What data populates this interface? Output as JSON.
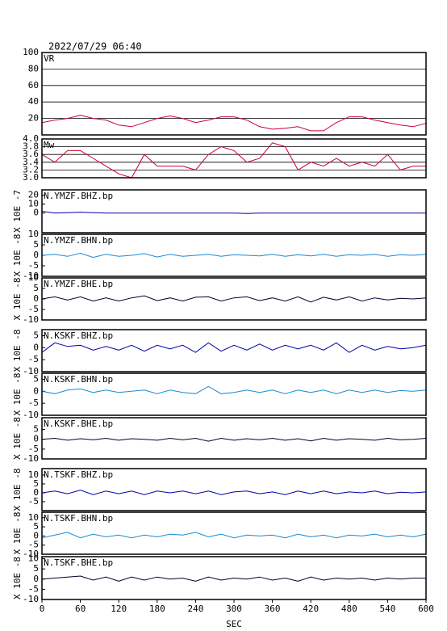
{
  "title": "2022/07/29 06:40",
  "chart_data": [
    {
      "type": "line",
      "title": "VR",
      "color": "#cc0033",
      "grid": true,
      "xlim": [
        0,
        600
      ],
      "ylim": [
        0,
        100
      ],
      "yticks": [
        20,
        40,
        60,
        80,
        100
      ],
      "x": [
        0,
        20,
        40,
        60,
        80,
        100,
        120,
        140,
        160,
        180,
        200,
        220,
        240,
        260,
        280,
        300,
        320,
        340,
        360,
        380,
        400,
        420,
        440,
        460,
        480,
        500,
        520,
        540,
        560,
        580,
        600
      ],
      "values": [
        15,
        18,
        20,
        24,
        20,
        18,
        12,
        10,
        15,
        20,
        23,
        20,
        15,
        18,
        22,
        22,
        18,
        10,
        7,
        8,
        10,
        5,
        5,
        15,
        22,
        22,
        18,
        15,
        12,
        10,
        14
      ]
    },
    {
      "type": "line",
      "title": "Mw",
      "color": "#cc0033",
      "grid": true,
      "xlim": [
        0,
        600
      ],
      "ylim": [
        3,
        4
      ],
      "yticks": [
        {
          "value": 3,
          "label": "3.0"
        },
        3.2,
        3.4,
        3.6,
        3.8,
        {
          "value": 4,
          "label": "4.0"
        }
      ],
      "x": [
        0,
        20,
        40,
        60,
        80,
        100,
        120,
        140,
        160,
        180,
        200,
        220,
        240,
        260,
        280,
        300,
        320,
        340,
        360,
        380,
        400,
        420,
        440,
        460,
        480,
        500,
        520,
        540,
        560,
        580,
        600
      ],
      "values": [
        3.6,
        3.4,
        3.7,
        3.7,
        3.5,
        3.3,
        3.1,
        3.0,
        3.6,
        3.3,
        3.3,
        3.3,
        3.2,
        3.6,
        3.8,
        3.7,
        3.4,
        3.5,
        3.9,
        3.8,
        3.2,
        3.4,
        3.3,
        3.5,
        3.3,
        3.4,
        3.3,
        3.6,
        3.2,
        3.3,
        3.3
      ]
    },
    {
      "type": "line",
      "title": "N.YMZF.BHZ.bp",
      "ylabel": "X 10E -7",
      "color": "#0000aa",
      "xlim": [
        0,
        600
      ],
      "ylim": [
        -22,
        26
      ],
      "yticks": [
        0,
        10,
        20
      ],
      "x": [
        0,
        20,
        40,
        60,
        80,
        100,
        120,
        140,
        160,
        180,
        200,
        220,
        240,
        260,
        280,
        300,
        320,
        340,
        360,
        380,
        400,
        420,
        440,
        460,
        480,
        500,
        520,
        540,
        560,
        580,
        600
      ],
      "values": [
        2,
        0,
        0.5,
        1,
        0.5,
        0,
        0,
        0,
        0,
        0,
        0,
        0,
        0,
        0,
        0,
        0,
        -0.5,
        0,
        0,
        0,
        0,
        0,
        0,
        0,
        0,
        0,
        0,
        0,
        0,
        0,
        0
      ]
    },
    {
      "type": "line",
      "title": "N.YMZF.BHN.bp",
      "ylabel": "X 10E -8",
      "color": "#1a8ad4",
      "xlim": [
        0,
        600
      ],
      "ylim": [
        -10,
        10
      ],
      "yticks": [
        -10,
        -5,
        0,
        5,
        10
      ],
      "x": [
        0,
        20,
        40,
        60,
        80,
        100,
        120,
        140,
        160,
        180,
        200,
        220,
        240,
        260,
        280,
        300,
        320,
        340,
        360,
        380,
        400,
        420,
        440,
        460,
        480,
        500,
        520,
        540,
        560,
        580,
        600
      ],
      "values": [
        0,
        0.5,
        -0.5,
        1,
        -1,
        0.5,
        -0.5,
        0,
        0.8,
        -0.8,
        0.5,
        -0.5,
        0,
        0.5,
        -0.5,
        0.3,
        0,
        -0.3,
        0.5,
        -0.5,
        0.3,
        -0.3,
        0.5,
        -0.5,
        0.3,
        0,
        0.5,
        -0.5,
        0.3,
        0,
        0.5
      ]
    },
    {
      "type": "line",
      "title": "N.YMZF.BHE.bp",
      "ylabel": "X 10E -8",
      "color": "#000033",
      "xlim": [
        0,
        600
      ],
      "ylim": [
        -10,
        10
      ],
      "yticks": [
        -10,
        -5,
        0,
        5,
        10
      ],
      "x": [
        0,
        20,
        40,
        60,
        80,
        100,
        120,
        140,
        160,
        180,
        200,
        220,
        240,
        260,
        280,
        300,
        320,
        340,
        360,
        380,
        400,
        420,
        440,
        460,
        480,
        500,
        520,
        540,
        560,
        580,
        600
      ],
      "values": [
        0,
        1,
        -0.5,
        1,
        -1,
        0.5,
        -1,
        0.5,
        1.5,
        -0.8,
        0.5,
        -1,
        0.8,
        1,
        -1,
        0.5,
        1,
        -0.8,
        0.5,
        -1,
        1,
        -1.5,
        0.8,
        -0.5,
        1,
        -1,
        0.5,
        -0.5,
        0.3,
        0,
        0.5
      ]
    },
    {
      "type": "line",
      "title": "N.KSKF.BHZ.bp",
      "ylabel": "X 10E -8",
      "color": "#0000aa",
      "xlim": [
        0,
        600
      ],
      "ylim": [
        -10,
        7.5
      ],
      "yticks": [
        -10,
        -5,
        0,
        5
      ],
      "x": [
        0,
        20,
        40,
        60,
        80,
        100,
        120,
        140,
        160,
        180,
        200,
        220,
        240,
        260,
        280,
        300,
        320,
        340,
        360,
        380,
        400,
        420,
        440,
        460,
        480,
        500,
        520,
        540,
        560,
        580,
        600
      ],
      "values": [
        -2,
        2,
        0.5,
        1,
        -1,
        0.5,
        -1,
        1,
        -1.5,
        1,
        -0.5,
        1,
        -2,
        2,
        -1.5,
        1,
        -1,
        1.5,
        -1,
        1,
        -0.5,
        1,
        -1,
        2,
        -2,
        1,
        -1,
        0.5,
        -0.5,
        0,
        1
      ]
    },
    {
      "type": "line",
      "title": "N.KSKF.BHN.bp",
      "ylabel": "X 10E -8",
      "color": "#1a8ad4",
      "xlim": [
        0,
        600
      ],
      "ylim": [
        -10,
        7.5
      ],
      "yticks": [
        -10,
        -5,
        0,
        5
      ],
      "x": [
        0,
        20,
        40,
        60,
        80,
        100,
        120,
        140,
        160,
        180,
        200,
        220,
        240,
        260,
        280,
        300,
        320,
        340,
        360,
        380,
        400,
        420,
        440,
        460,
        480,
        500,
        520,
        540,
        560,
        580,
        600
      ],
      "values": [
        0,
        -1,
        0.5,
        1,
        -0.5,
        0.5,
        -0.5,
        0,
        0.5,
        -1,
        0.5,
        -0.5,
        -1,
        2,
        -1,
        -0.5,
        0.5,
        -0.5,
        0.5,
        -1,
        0.5,
        -0.5,
        0.5,
        -1,
        0.5,
        -0.5,
        0.5,
        -0.5,
        0.3,
        0,
        0.5
      ]
    },
    {
      "type": "line",
      "title": "N.KSKF.BHE.bp",
      "ylabel": "X 10E -8",
      "color": "#000033",
      "xlim": [
        0,
        600
      ],
      "ylim": [
        -10,
        11
      ],
      "yticks": [
        -10,
        -5,
        0,
        5
      ],
      "x": [
        0,
        20,
        40,
        60,
        80,
        100,
        120,
        140,
        160,
        180,
        200,
        220,
        240,
        260,
        280,
        300,
        320,
        340,
        360,
        380,
        400,
        420,
        440,
        460,
        480,
        500,
        520,
        540,
        560,
        580,
        600
      ],
      "values": [
        0,
        0.5,
        -0.5,
        0.3,
        -0.3,
        0.5,
        -0.5,
        0.3,
        0,
        -0.5,
        0.5,
        -0.3,
        0.5,
        -1,
        0.5,
        -0.5,
        0.3,
        -0.3,
        0.5,
        -0.5,
        0.3,
        -0.8,
        0.5,
        -0.5,
        0.3,
        0,
        -0.5,
        0.5,
        -0.3,
        0,
        0.5
      ]
    },
    {
      "type": "line",
      "title": "N.TSKF.BHZ.bp",
      "ylabel": "X 10E -8",
      "color": "#0000aa",
      "xlim": [
        0,
        600
      ],
      "ylim": [
        -10,
        13.6
      ],
      "yticks": [
        -5,
        0,
        5,
        10
      ],
      "x": [
        0,
        20,
        40,
        60,
        80,
        100,
        120,
        140,
        160,
        180,
        200,
        220,
        240,
        260,
        280,
        300,
        320,
        340,
        360,
        380,
        400,
        420,
        440,
        460,
        480,
        500,
        520,
        540,
        560,
        580,
        600
      ],
      "values": [
        0,
        1,
        -0.5,
        1.5,
        -1,
        1,
        -0.5,
        1,
        -1,
        1,
        0,
        1,
        -0.5,
        1,
        -1,
        0.5,
        1,
        -0.5,
        0.5,
        -1,
        1,
        -0.5,
        1,
        -0.5,
        0.5,
        0,
        1,
        -0.5,
        0.3,
        0,
        0.5
      ]
    },
    {
      "type": "line",
      "title": "N.TSKF.BHN.bp",
      "ylabel": "X 10E -8",
      "color": "#1a8ad4",
      "xlim": [
        0,
        600
      ],
      "ylim": [
        -10,
        13
      ],
      "yticks": [
        -10,
        -5,
        0,
        5,
        10
      ],
      "x": [
        0,
        20,
        40,
        60,
        80,
        100,
        120,
        140,
        160,
        180,
        200,
        220,
        240,
        260,
        280,
        300,
        320,
        340,
        360,
        380,
        400,
        420,
        440,
        460,
        480,
        500,
        520,
        540,
        560,
        580,
        600
      ],
      "values": [
        -1,
        0.5,
        2,
        -1,
        1,
        -0.5,
        0.5,
        -1,
        0.5,
        -0.5,
        1,
        0.5,
        2,
        -0.5,
        1,
        -1,
        0.5,
        0,
        0.5,
        -1,
        1,
        -0.5,
        0.5,
        -1,
        0.5,
        0,
        1,
        -0.5,
        0.5,
        -0.5,
        1
      ]
    },
    {
      "type": "line",
      "title": "N.TSKF.BHE.bp",
      "ylabel": "X 10E -8",
      "xlabel": "SEC",
      "color": "#000033",
      "xlim": [
        0,
        600
      ],
      "ylim": [
        -10,
        11
      ],
      "yticks": [
        -10,
        -5,
        0,
        5,
        10
      ],
      "xticks": [
        0,
        60,
        120,
        180,
        240,
        300,
        360,
        420,
        480,
        540,
        600
      ],
      "x": [
        0,
        20,
        40,
        60,
        80,
        100,
        120,
        140,
        160,
        180,
        200,
        220,
        240,
        260,
        280,
        300,
        320,
        340,
        360,
        380,
        400,
        420,
        440,
        460,
        480,
        500,
        520,
        540,
        560,
        580,
        600
      ],
      "values": [
        0,
        0.5,
        1,
        1.5,
        -0.5,
        1,
        -1,
        1,
        -0.5,
        1,
        0,
        0.5,
        -1,
        1,
        -0.5,
        0.5,
        0,
        1,
        -0.5,
        0.5,
        -1,
        1,
        -0.5,
        0.5,
        0,
        0.5,
        -0.5,
        0.5,
        0,
        0.5,
        0.5
      ]
    }
  ]
}
